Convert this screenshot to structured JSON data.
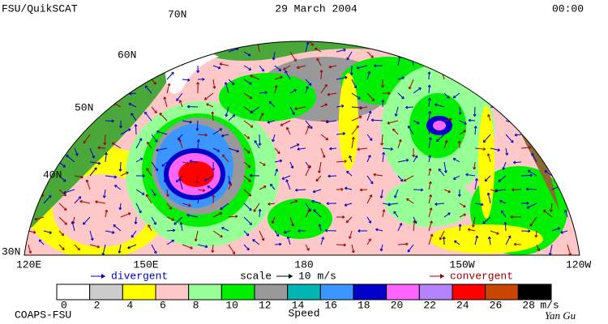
{
  "header": {
    "title": "FSU/QuikSCAT",
    "date": "29 March 2004",
    "time": "00:00"
  },
  "map": {
    "lat_labels": [
      "70N",
      "60N",
      "50N",
      "40N",
      "30N"
    ],
    "lon_labels": [
      "120E",
      "150E",
      "180",
      "150W",
      "120W"
    ]
  },
  "annotations": {
    "divergent": "divergent",
    "scale": "scale",
    "scale_value": "10 m/s",
    "convergent": "convergent"
  },
  "legend": {
    "ticks": [
      0,
      2,
      4,
      6,
      8,
      10,
      12,
      14,
      16,
      18,
      20,
      22,
      24,
      26,
      28
    ],
    "unit": "m/s",
    "label": "Speed",
    "colors": [
      "#ffffff",
      "#cccccc",
      "#ffff00",
      "#ffc8c8",
      "#96ff96",
      "#00ee00",
      "#999999",
      "#00b4b4",
      "#3c96ff",
      "#0000c8",
      "#ff64ff",
      "#b482ff",
      "#ff0000",
      "#c84600",
      "#000000"
    ]
  },
  "footer": {
    "credit": "COAPS-FSU",
    "author": "Yan Gu"
  }
}
